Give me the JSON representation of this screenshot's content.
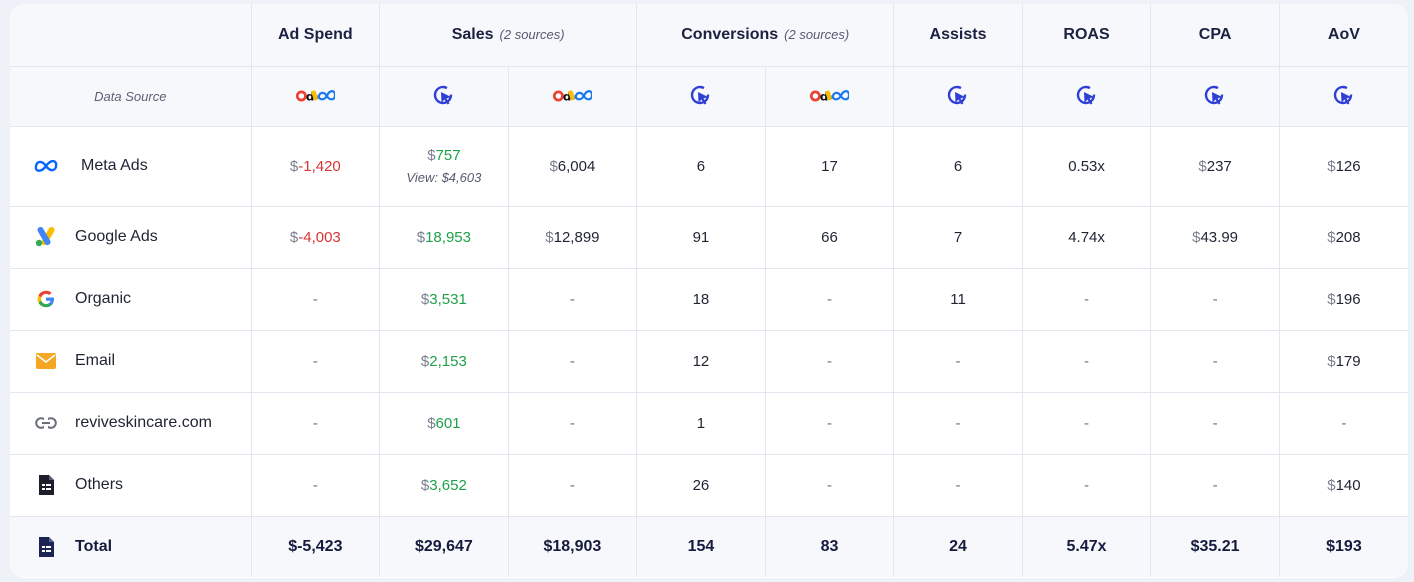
{
  "headers": {
    "ad_spend": "Ad Spend",
    "sales": "Sales",
    "sales_sources": "(2 sources)",
    "conversions": "Conversions",
    "conversions_sources": "(2 sources)",
    "assists": "Assists",
    "roas": "ROAS",
    "cpa": "CPA",
    "aov": "AoV"
  },
  "data_source_label": "Data Source",
  "rows": [
    {
      "name": "Meta Ads",
      "icon": "meta-icon",
      "ad_spend_cur": "$",
      "ad_spend": "-1,420",
      "sales_cur": "$",
      "sales": "757",
      "sales_view": "View: $4,603",
      "sales_platform_cur": "$",
      "sales_platform": "6,004",
      "conv": "6",
      "conv_platform": "17",
      "assists": "6",
      "roas": "0.53x",
      "cpa_cur": "$",
      "cpa": "237",
      "aov_cur": "$",
      "aov": "126"
    },
    {
      "name": "Google Ads",
      "icon": "google-ads-icon",
      "ad_spend_cur": "$",
      "ad_spend": "-4,003",
      "sales_cur": "$",
      "sales": "18,953",
      "sales_platform_cur": "$",
      "sales_platform": "12,899",
      "conv": "91",
      "conv_platform": "66",
      "assists": "7",
      "roas": "4.74x",
      "cpa_cur": "$",
      "cpa": "43.99",
      "aov_cur": "$",
      "aov": "208"
    },
    {
      "name": "Organic",
      "icon": "google-icon",
      "ad_spend": "-",
      "sales_cur": "$",
      "sales": "3,531",
      "sales_platform": "-",
      "conv": "18",
      "conv_platform": "-",
      "assists": "11",
      "roas": "-",
      "cpa": "-",
      "aov_cur": "$",
      "aov": "196"
    },
    {
      "name": "Email",
      "icon": "email-icon",
      "ad_spend": "-",
      "sales_cur": "$",
      "sales": "2,153",
      "sales_platform": "-",
      "conv": "12",
      "conv_platform": "-",
      "assists": "-",
      "roas": "-",
      "cpa": "-",
      "aov_cur": "$",
      "aov": "179"
    },
    {
      "name": "reviveskincare.com",
      "icon": "link-icon",
      "ad_spend": "-",
      "sales_cur": "$",
      "sales": "601",
      "sales_platform": "-",
      "conv": "1",
      "conv_platform": "-",
      "assists": "-",
      "roas": "-",
      "cpa": "-",
      "aov": "-"
    },
    {
      "name": "Others",
      "icon": "document-icon",
      "ad_spend": "-",
      "sales_cur": "$",
      "sales": "3,652",
      "sales_platform": "-",
      "conv": "26",
      "conv_platform": "-",
      "assists": "-",
      "roas": "-",
      "cpa": "-",
      "aov_cur": "$",
      "aov": "140"
    }
  ],
  "total": {
    "name": "Total",
    "icon": "document-icon",
    "ad_spend": "$-5,423",
    "sales": "$29,647",
    "sales_platform": "$18,903",
    "conv": "154",
    "conv_platform": "83",
    "assists": "24",
    "roas": "5.47x",
    "cpa": "$35.21",
    "aov": "$193"
  },
  "colors": {
    "negative": "#d93535",
    "positive": "#1fa14a",
    "accent": "#2f3fd6",
    "header_bg": "#f7f8fc"
  }
}
